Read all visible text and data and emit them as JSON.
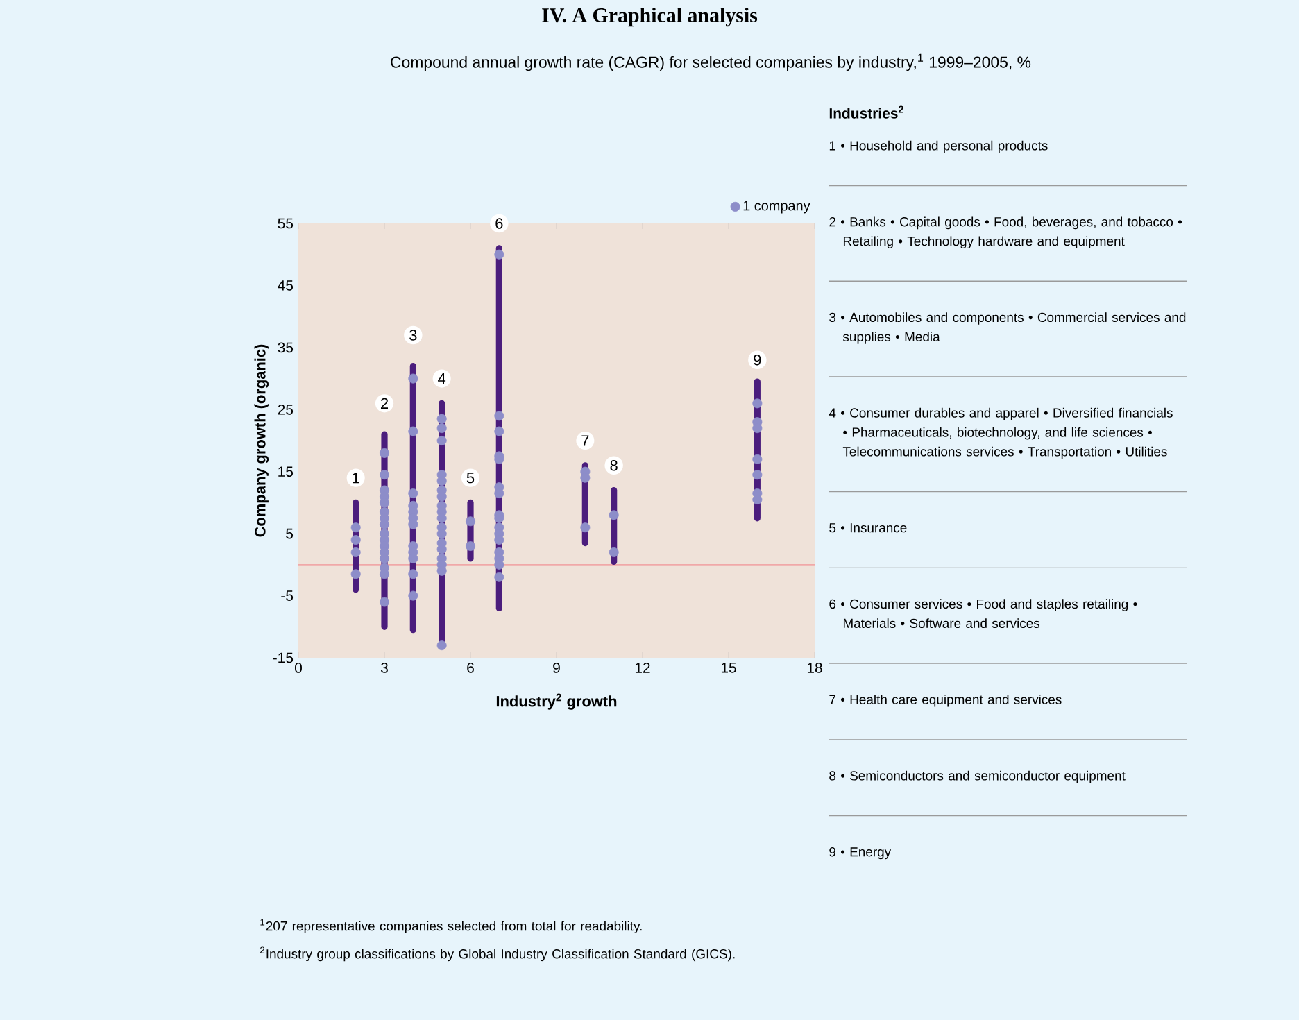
{
  "chart_data": [
    {
      "type": "scatter",
      "title": "IV. A Graphical analysis",
      "subtitle": "Compound annual growth rate (CAGR) for selected companies by industry,$^{1}$ 1999–2005, %",
      "xlabel": "Industry$^{2}$ growth",
      "ylabel": "Company growth (organic)",
      "xlim": [
        0,
        18
      ],
      "xticks": [
        0,
        3,
        6,
        9,
        12,
        15,
        18
      ],
      "ylim": [
        -15,
        55
      ],
      "yticks": [
        -15,
        -5,
        5,
        15,
        25,
        35,
        45,
        55
      ],
      "legend": "top right",
      "ref_lines": [
        {
          "axis": "y",
          "value": 0,
          "color": "#f0a8a8"
        }
      ],
      "series": [
        {
          "type": "line",
          "x": [
            2,
            2
          ],
          "values": [
            -4,
            10
          ],
          "color": "#4b1d7d"
        },
        {
          "type": "line",
          "x": [
            3,
            3
          ],
          "values": [
            -10,
            21
          ],
          "color": "#4b1d7d"
        },
        {
          "type": "line",
          "x": [
            4,
            4
          ],
          "values": [
            -10.5,
            32
          ],
          "color": "#4b1d7d"
        },
        {
          "type": "line",
          "x": [
            5,
            5
          ],
          "values": [
            -13,
            26
          ],
          "color": "#4b1d7d"
        },
        {
          "type": "line",
          "x": [
            6,
            6
          ],
          "values": [
            1,
            10
          ],
          "color": "#4b1d7d"
        },
        {
          "type": "line",
          "x": [
            7,
            7
          ],
          "values": [
            -7,
            51
          ],
          "color": "#4b1d7d"
        },
        {
          "type": "line",
          "x": [
            10,
            10
          ],
          "values": [
            3.5,
            16
          ],
          "color": "#4b1d7d"
        },
        {
          "type": "line",
          "x": [
            11,
            11
          ],
          "values": [
            0.5,
            12
          ],
          "color": "#4b1d7d"
        },
        {
          "type": "line",
          "x": [
            16,
            16
          ],
          "values": [
            7.5,
            29.5
          ],
          "color": "#4b1d7d"
        },
        {
          "type": "scatter",
          "name": "1 company",
          "color": "#8d8dc9",
          "x": [
            2,
            2,
            2,
            2,
            3,
            3,
            3,
            3,
            3,
            3,
            3,
            3,
            3,
            3,
            3,
            3,
            3,
            3,
            3,
            3,
            4,
            4,
            4,
            4,
            4,
            4,
            4,
            4,
            4,
            4,
            4,
            4,
            5,
            5,
            5,
            5,
            5,
            5,
            5,
            5,
            5,
            5,
            5,
            5,
            5,
            5,
            5,
            5,
            5,
            5,
            6,
            6,
            7,
            7,
            7,
            7,
            7,
            7,
            7,
            7,
            7,
            7,
            7,
            7,
            7,
            7,
            7,
            7,
            10,
            10,
            10,
            11,
            11,
            16,
            16,
            16,
            16,
            16,
            16,
            16
          ],
          "values": [
            6,
            4,
            2,
            -1.5,
            18,
            14.5,
            12,
            11,
            10,
            8.5,
            7.5,
            6.5,
            5,
            4,
            3,
            2,
            1,
            -0.5,
            -1.5,
            -6,
            30,
            21.5,
            11.5,
            9.5,
            8.5,
            7.5,
            6.5,
            3,
            2,
            1,
            -1.5,
            -5,
            23.5,
            22,
            20,
            14.5,
            13.5,
            12,
            11,
            9.5,
            8.5,
            7.5,
            6,
            5,
            3.5,
            2.5,
            1,
            0,
            -1,
            -13,
            7,
            3,
            50,
            24,
            21.5,
            17.5,
            17,
            12.5,
            11.5,
            8,
            7.5,
            6,
            5,
            4,
            2,
            1,
            0,
            -2,
            15,
            14,
            6,
            8,
            2,
            26,
            23,
            22,
            17,
            14.5,
            11.5,
            10.5
          ]
        }
      ],
      "annotations": [
        {
          "text": "1",
          "x": 2,
          "y": 14
        },
        {
          "text": "2",
          "x": 3,
          "y": 26
        },
        {
          "text": "3",
          "x": 4,
          "y": 37
        },
        {
          "text": "4",
          "x": 5,
          "y": 30
        },
        {
          "text": "5",
          "x": 6,
          "y": 14
        },
        {
          "text": "6",
          "x": 7,
          "y": 55
        },
        {
          "text": "7",
          "x": 10,
          "y": 20
        },
        {
          "text": "8",
          "x": 11,
          "y": 16
        },
        {
          "text": "9",
          "x": 16,
          "y": 33
        },
        "$^{1}$207 representative companies selected from total for readability.",
        "$^{2}$Industry group classifications by Global Industry Classification Standard (GICS)."
      ]
    },
    {
      "type": "other",
      "title": "Industries$^{2}$",
      "annotations": [
        "1 • Household and personal products",
        "2 • Banks • Capital goods • Food, beverages, and tobacco • Retailing • Technology hardware and equipment",
        "3 • Automobiles and components • Commercial services and supplies • Media",
        "4 • Consumer durables and apparel • Diversified financials • Pharmaceuticals, biotechnology, and life sciences • Telecommunications services • Transportation • Utilities",
        "5 • Insurance",
        "6 • Consumer services • Food and staples retailing • Materials • Software and services",
        "7 • Health care equipment and services",
        "8 • Semiconductors and semiconductor equipment",
        "9 • Energy"
      ]
    }
  ]
}
